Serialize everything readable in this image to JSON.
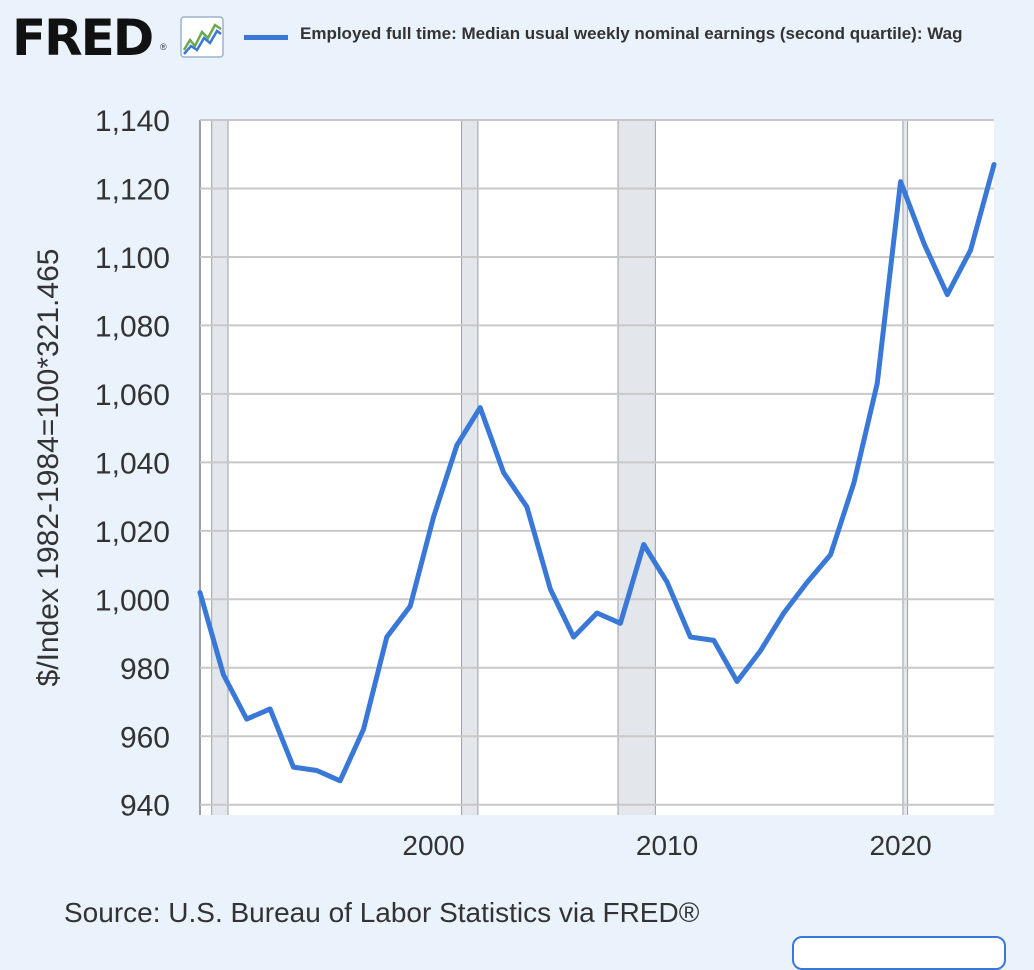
{
  "header": {
    "logo_text": "FRED",
    "logo_reg": "®",
    "logo_icon": "fred-line-chart-icon",
    "legend_label": "Employed full time: Median usual weekly nominal earnings (second quartile): Wag"
  },
  "footer": {
    "source": "Source: U.S. Bureau of Labor Statistics via FRED®"
  },
  "colors": {
    "series": "#3a78d8",
    "background": "#eaf2fb",
    "plot_background": "#ffffff",
    "grid": "#c8c8c8",
    "recession": "#e3e6ea"
  },
  "chart_data": {
    "type": "line",
    "title": "",
    "xlabel": "",
    "ylabel": "$/Index 1982-1984=100*321.465",
    "xlim": [
      1990,
      2024
    ],
    "ylim": [
      937,
      1140
    ],
    "yticks": [
      940,
      960,
      980,
      1000,
      1020,
      1040,
      1060,
      1080,
      1100,
      1120,
      1140
    ],
    "ytick_labels": [
      "940",
      "960",
      "980",
      "1,000",
      "1,020",
      "1,040",
      "1,060",
      "1,080",
      "1,100",
      "1,120",
      "1,140"
    ],
    "xticks": [
      2000,
      2010,
      2020
    ],
    "xtick_labels": [
      "2000",
      "2010",
      "2020"
    ],
    "grid": true,
    "recession_periods": [
      [
        1990.5,
        1991.2
      ],
      [
        2001.2,
        2001.9
      ],
      [
        2007.9,
        2009.5
      ],
      [
        2020.1,
        2020.3
      ]
    ],
    "series": [
      {
        "name": "Employed full time: Median usual weekly nominal earnings (second quartile): Wag",
        "x": [
          1990,
          1991,
          1992,
          1993,
          1994,
          1995,
          1996,
          1997,
          1998,
          1999,
          2000,
          2001,
          2002,
          2003,
          2004,
          2005,
          2006,
          2007,
          2008,
          2009,
          2010,
          2011,
          2012,
          2013,
          2014,
          2015,
          2016,
          2017,
          2018,
          2019,
          2020,
          2021,
          2022,
          2023,
          2024
        ],
        "y": [
          1002,
          978,
          965,
          968,
          951,
          950,
          947,
          962,
          989,
          998,
          1024,
          1045,
          1056,
          1037,
          1027,
          1003,
          989,
          996,
          993,
          1016,
          1005,
          989,
          988,
          976,
          985,
          996,
          1005,
          1013,
          1034,
          1063,
          1122,
          1104,
          1089,
          1102,
          1127
        ]
      }
    ]
  }
}
